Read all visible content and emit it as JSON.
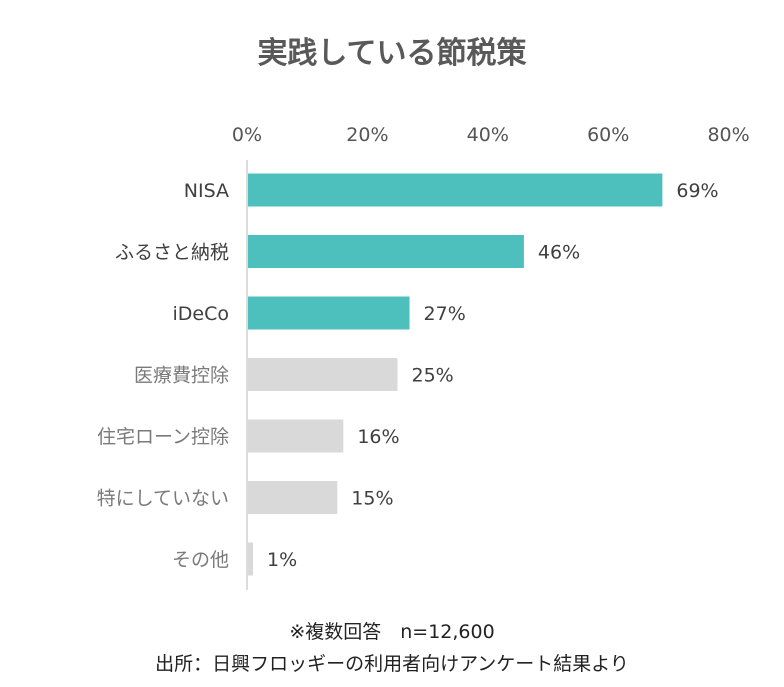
{
  "title": "実践している節税策",
  "chart_data": {
    "type": "bar",
    "orientation": "horizontal",
    "title": "実践している節税策",
    "categories": [
      "NISA",
      "ふるさと納税",
      "iDeCo",
      "医療費控除",
      "住宅ローン控除",
      "特にしていない",
      "その他"
    ],
    "values": [
      69,
      46,
      27,
      25,
      16,
      15,
      1
    ],
    "value_labels": [
      "69%",
      "46%",
      "27%",
      "25%",
      "16%",
      "15%",
      "1%"
    ],
    "highlighted": [
      true,
      true,
      true,
      false,
      false,
      false,
      false
    ],
    "xlim": [
      0,
      80
    ],
    "xticks": [
      0,
      20,
      40,
      60,
      80
    ],
    "xtick_labels": [
      "0%",
      "20%",
      "40%",
      "60%",
      "80%"
    ],
    "x_axis_position": "top",
    "grid": false,
    "colors": {
      "highlight": "#4dc0bd",
      "other": "#d9d9d9"
    }
  },
  "notes": {
    "sample": "※複数回答　n=12,600",
    "source": "出所：日興フロッギーの利用者向けアンケート結果より"
  }
}
